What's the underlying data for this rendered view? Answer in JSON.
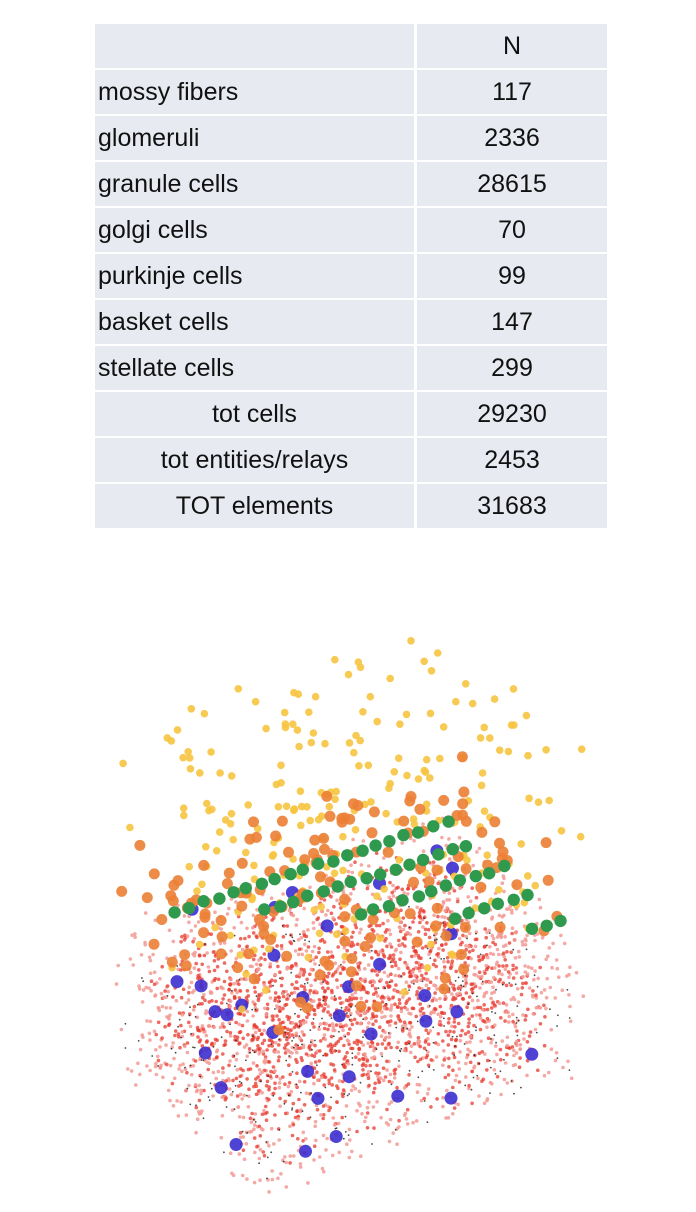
{
  "table": {
    "header": [
      "",
      "N"
    ],
    "rows": [
      {
        "name": "mossy fibers",
        "n": "117"
      },
      {
        "name": "glomeruli",
        "n": "2336"
      },
      {
        "name": "granule cells",
        "n": "28615"
      },
      {
        "name": "golgi cells",
        "n": "70"
      },
      {
        "name": "purkinje cells",
        "n": "99"
      },
      {
        "name": "basket cells",
        "n": "147"
      },
      {
        "name": "stellate cells",
        "n": "299"
      },
      {
        "name": "tot cells",
        "n": "29230"
      },
      {
        "name": "tot entities/relays",
        "n": "2453"
      },
      {
        "name": "TOT elements",
        "n": "31683"
      }
    ]
  },
  "render": {
    "type": "3d-scatter",
    "colors": {
      "granule": "#e8382c",
      "granule_light": "#f29a94",
      "glomeruli": "#1a1a1a",
      "golgi": "#3c2fd0",
      "purkinje": "#2f9a4e",
      "basket": "#eb7f35",
      "stellate": "#f6c440"
    }
  }
}
